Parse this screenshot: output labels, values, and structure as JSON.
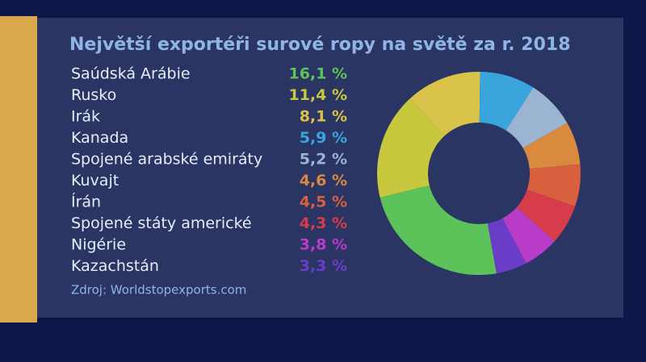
{
  "chart_data": {
    "type": "pie",
    "title": "Největší exportéři surové ropy na světě za r. 2018",
    "source": "Zdroj: Worldstopexports.com",
    "categories": [
      "Saúdská Arábie",
      "Rusko",
      "Irák",
      "Kanada",
      "Spojené arabské emiráty",
      "Kuvajt",
      "Írán",
      "Spojené státy americké",
      "Nigérie",
      "Kazachstán"
    ],
    "values": [
      16.1,
      11.4,
      8.1,
      5.9,
      5.2,
      4.6,
      4.5,
      4.3,
      3.8,
      3.3
    ],
    "value_labels": [
      "16,1 %",
      "11,4 %",
      "8,1 %",
      "5,9 %",
      "5,2 %",
      "4,6 %",
      "4,5 %",
      "4,3 %",
      "3,8 %",
      "3,3 %"
    ],
    "colors": [
      "#5cc25a",
      "#c8c83e",
      "#d8c24a",
      "#3aa4dc",
      "#9ab4d2",
      "#d98a3e",
      "#d9603e",
      "#d63c4a",
      "#b83cc8",
      "#6a3cc8"
    ],
    "donut": true
  }
}
